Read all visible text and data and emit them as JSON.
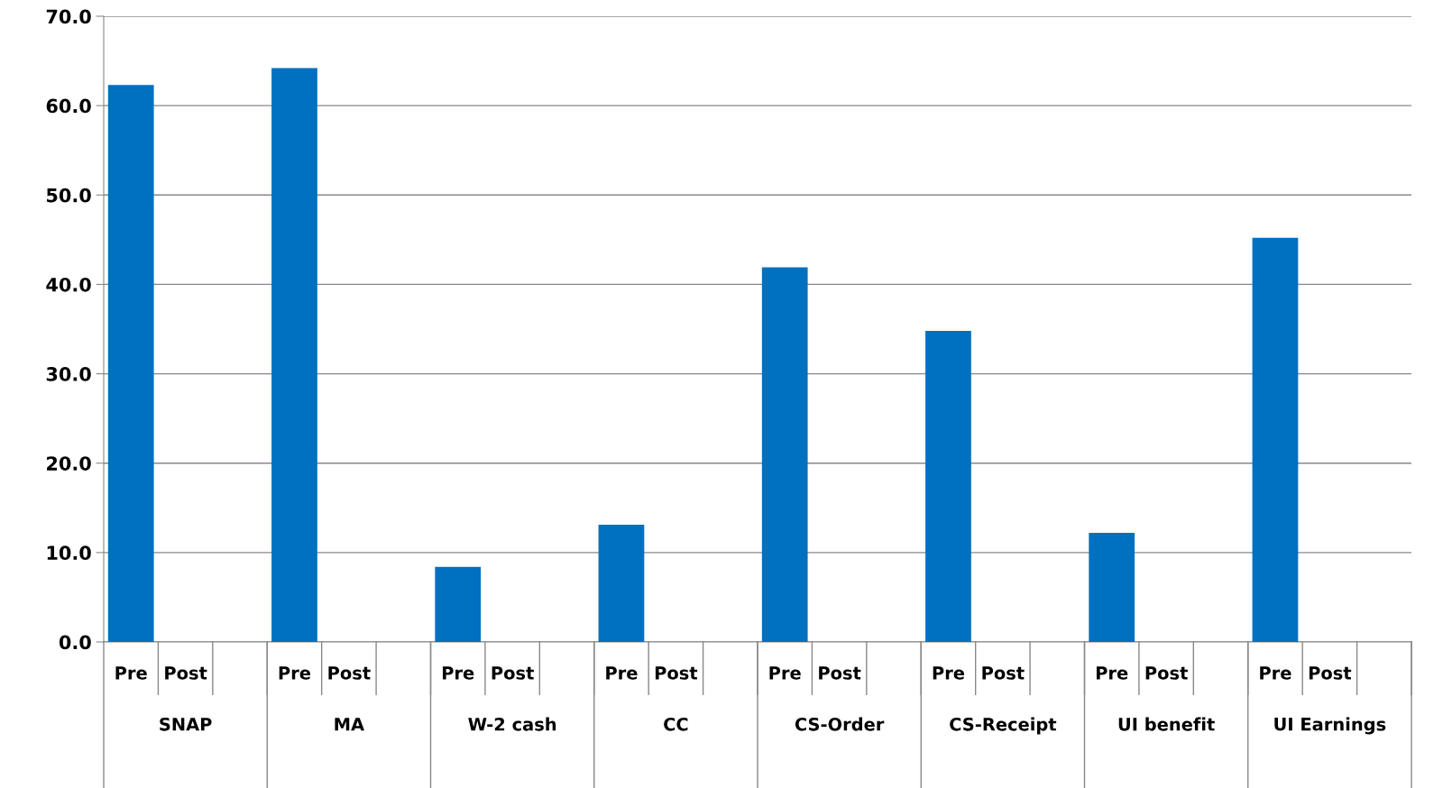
{
  "chart_data": {
    "type": "bar",
    "categories": [
      "Pre",
      "Post",
      null,
      "Pre",
      "Post",
      null,
      "Pre",
      "Post",
      null,
      "Pre",
      "Post",
      null,
      "Pre",
      "Post",
      null,
      "Pre",
      "Post",
      null,
      "Pre",
      "Post",
      null,
      "Pre",
      "Post",
      null
    ],
    "values": [
      62.3,
      null,
      null,
      64.2,
      null,
      null,
      8.4,
      null,
      null,
      13.1,
      null,
      null,
      41.9,
      null,
      null,
      34.8,
      null,
      null,
      12.2,
      null,
      null,
      45.2,
      null,
      null
    ],
    "color": "#0070c0",
    "annotations": [
      "SNAP",
      "MA",
      "W-2 cash",
      "CC",
      "CS-Order",
      "CS-Receipt",
      "UI benefit",
      "UI Earnings"
    ],
    "ylim": [
      0,
      70
    ],
    "yticks": [
      {
        "value": 0,
        "label": "0.0"
      },
      {
        "value": 10,
        "label": "10.0"
      },
      {
        "value": 20,
        "label": "20.0"
      },
      {
        "value": 30,
        "label": "30.0"
      },
      {
        "value": 40,
        "label": "40.0"
      },
      {
        "value": 50,
        "label": "50.0"
      },
      {
        "value": 60,
        "label": "60.0"
      },
      {
        "value": 70,
        "label": "70.0"
      }
    ],
    "grid": "y",
    "legend": false
  }
}
